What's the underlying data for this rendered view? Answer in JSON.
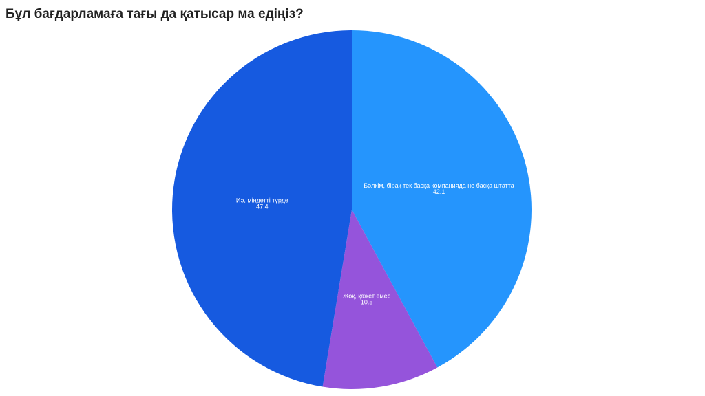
{
  "chart_data": {
    "type": "pie",
    "title": "Бұл бағдарламаға тағы да қатысар ма едіңіз?",
    "categories": [
      "Бәлкім, бірақ тек басқа компанияда не басқа штатта",
      "Жоқ, қажет емес",
      "Иә, міндетті түрде"
    ],
    "values": [
      42.1,
      10.5,
      47.4
    ],
    "colors": [
      "#2595fd",
      "#9554db",
      "#165ae0"
    ]
  }
}
